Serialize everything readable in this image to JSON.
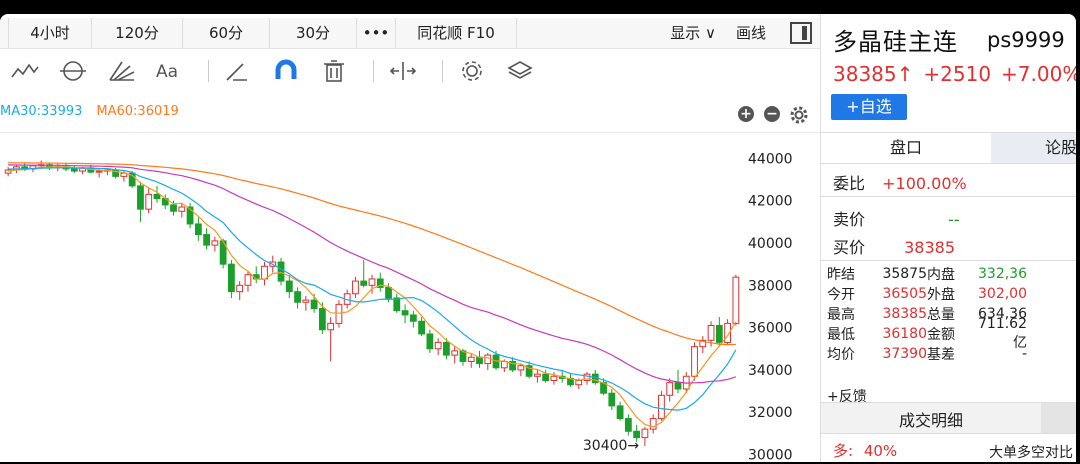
{
  "periods": [
    {
      "label": "4小时"
    },
    {
      "label": "120分"
    },
    {
      "label": "60分"
    },
    {
      "label": "30分"
    },
    {
      "label": "•••"
    },
    {
      "label": "同花顺 F10"
    }
  ],
  "header": {
    "display_label": "显示",
    "display_caret": "∨",
    "draw_label": "画线"
  },
  "ma_legend": {
    "ma30": "MA30:33993",
    "ma60": "MA60:36019"
  },
  "chart_ctrl": {
    "plus": "+",
    "minus": "−"
  },
  "chart_data": {
    "type": "candlestick",
    "y_ticks": [
      44000,
      42000,
      40000,
      38000,
      36000,
      34000,
      32000,
      30000
    ],
    "ylim": [
      29600,
      45200
    ],
    "low_annotation": "30400→",
    "low_value": 30400,
    "series_colors": {
      "up": "#e03030",
      "down": "#1aa02a",
      "ma5": "#f39a1f",
      "ma10": "#1aa8ee",
      "ma30": "#c83ab8",
      "ma60": "#ff7a1a"
    },
    "candles": [
      [
        43300,
        43600,
        43150,
        43450
      ],
      [
        43450,
        43700,
        43300,
        43600
      ],
      [
        43600,
        43800,
        43400,
        43500
      ],
      [
        43500,
        43700,
        43350,
        43650
      ],
      [
        43650,
        43900,
        43500,
        43700
      ],
      [
        43700,
        43800,
        43450,
        43550
      ],
      [
        43550,
        43750,
        43400,
        43600
      ],
      [
        43600,
        43800,
        43400,
        43500
      ],
      [
        43500,
        43650,
        43300,
        43400
      ],
      [
        43400,
        43600,
        43250,
        43550
      ],
      [
        43550,
        43700,
        43300,
        43350
      ],
      [
        43350,
        43500,
        43100,
        43400
      ],
      [
        43400,
        43550,
        43200,
        43450
      ],
      [
        43450,
        43550,
        43050,
        43150
      ],
      [
        43150,
        43400,
        42900,
        43300
      ],
      [
        43300,
        43400,
        42600,
        42700
      ],
      [
        42700,
        42900,
        41000,
        41600
      ],
      [
        41600,
        42600,
        41400,
        42300
      ],
      [
        42300,
        42700,
        41900,
        42100
      ],
      [
        42100,
        42300,
        41600,
        41800
      ],
      [
        41800,
        42000,
        41300,
        41500
      ],
      [
        41500,
        41900,
        41200,
        41700
      ],
      [
        41700,
        41900,
        40700,
        40900
      ],
      [
        40900,
        41200,
        40100,
        40400
      ],
      [
        40400,
        40700,
        39700,
        39900
      ],
      [
        39900,
        40300,
        39600,
        40100
      ],
      [
        40100,
        40200,
        38800,
        39000
      ],
      [
        39000,
        39200,
        37400,
        37700
      ],
      [
        37700,
        38200,
        37300,
        38000
      ],
      [
        38000,
        38700,
        37700,
        38500
      ],
      [
        38500,
        38900,
        38100,
        38300
      ],
      [
        38300,
        39100,
        38000,
        38900
      ],
      [
        38900,
        39400,
        38600,
        39100
      ],
      [
        39100,
        39300,
        38000,
        38200
      ],
      [
        38200,
        38500,
        37400,
        37700
      ],
      [
        37700,
        37900,
        36900,
        37200
      ],
      [
        37200,
        37500,
        36800,
        37300
      ],
      [
        37300,
        37600,
        36700,
        36900
      ],
      [
        36900,
        37200,
        35700,
        35900
      ],
      [
        35900,
        36500,
        34400,
        36200
      ],
      [
        36200,
        37300,
        36000,
        37100
      ],
      [
        37100,
        37800,
        36900,
        37600
      ],
      [
        37600,
        38400,
        37400,
        38200
      ],
      [
        38200,
        39200,
        37900,
        38000
      ],
      [
        38000,
        38500,
        37600,
        38300
      ],
      [
        38300,
        38600,
        37700,
        37900
      ],
      [
        37900,
        38100,
        37200,
        37400
      ],
      [
        37400,
        37600,
        36700,
        36800
      ],
      [
        36800,
        37100,
        36200,
        36600
      ],
      [
        36600,
        36800,
        36000,
        36300
      ],
      [
        36300,
        36500,
        35600,
        35700
      ],
      [
        35700,
        35900,
        34800,
        35000
      ],
      [
        35000,
        35500,
        34700,
        35300
      ],
      [
        35300,
        35500,
        34500,
        34700
      ],
      [
        34700,
        35100,
        34300,
        34900
      ],
      [
        34900,
        35000,
        34200,
        34400
      ],
      [
        34400,
        34800,
        34100,
        34600
      ],
      [
        34600,
        34900,
        34100,
        34300
      ],
      [
        34300,
        34800,
        34000,
        34700
      ],
      [
        34700,
        34900,
        34000,
        34100
      ],
      [
        34100,
        34500,
        33900,
        34400
      ],
      [
        34400,
        34600,
        33900,
        34000
      ],
      [
        34000,
        34300,
        33700,
        34200
      ],
      [
        34200,
        34400,
        33600,
        33700
      ],
      [
        33700,
        34000,
        33400,
        33800
      ],
      [
        33800,
        34000,
        33400,
        33500
      ],
      [
        33500,
        33900,
        33300,
        33700
      ],
      [
        33700,
        34000,
        33400,
        33600
      ],
      [
        33600,
        33800,
        33200,
        33300
      ],
      [
        33300,
        33600,
        33100,
        33500
      ],
      [
        33500,
        33900,
        33300,
        33800
      ],
      [
        33800,
        34000,
        33300,
        33400
      ],
      [
        33400,
        33600,
        32800,
        32900
      ],
      [
        32900,
        33100,
        32100,
        32300
      ],
      [
        32300,
        32500,
        31600,
        31700
      ],
      [
        31700,
        31900,
        30900,
        31100
      ],
      [
        31100,
        31400,
        30600,
        30800
      ],
      [
        30800,
        31300,
        30400,
        31200
      ],
      [
        31200,
        31900,
        31000,
        31700
      ],
      [
        31700,
        33000,
        31600,
        32800
      ],
      [
        32800,
        33600,
        32500,
        33400
      ],
      [
        33400,
        34000,
        32900,
        33100
      ],
      [
        33100,
        33900,
        32900,
        33700
      ],
      [
        33700,
        35300,
        33500,
        35100
      ],
      [
        35100,
        35600,
        34800,
        35400
      ],
      [
        35400,
        36300,
        35100,
        36100
      ],
      [
        36100,
        36500,
        35100,
        35300
      ],
      [
        35300,
        36400,
        35200,
        36200
      ],
      [
        36200,
        38500,
        36100,
        38385
      ]
    ]
  },
  "quote": {
    "name": "多晶硅主连",
    "code": "ps9999",
    "price": "38385↑",
    "change": "+2510",
    "pct": "+7.00%",
    "add_label": "+自选"
  },
  "tabs": {
    "active": "盘口",
    "inactive": "论股"
  },
  "order_book": {
    "ratio_label": "委比",
    "ratio_value": "+100.00%",
    "ask_label": "卖价",
    "ask_value": "--",
    "bid_label": "买价",
    "bid_value": "38385"
  },
  "stats": [
    {
      "k1": "昨结",
      "v1": "35875",
      "k2": "内盘",
      "v2": "332,36"
    },
    {
      "k1": "今开",
      "v1": "36505",
      "k2": "外盘",
      "v2": "302,00"
    },
    {
      "k1": "最高",
      "v1": "38385",
      "k2": "总量",
      "v2": "634,36"
    },
    {
      "k1": "最低",
      "v1": "36180",
      "k2": "金额",
      "v2": "711.62亿"
    },
    {
      "k1": "均价",
      "v1": "37390",
      "k2": "基差",
      "v2": "-"
    }
  ],
  "feedback": "+反馈",
  "detail": {
    "title": "成交明细",
    "bull_label": "多:",
    "bull_pct": "40%",
    "flow_label": "大单多空对比"
  }
}
